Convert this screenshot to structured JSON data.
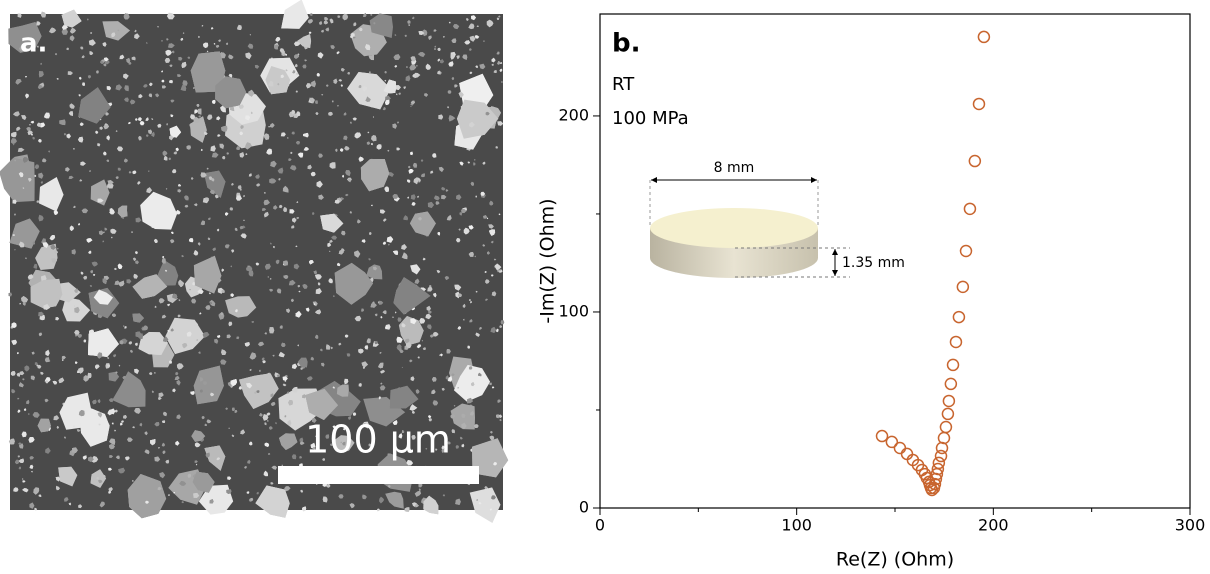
{
  "panel_a": {
    "label": "a.",
    "scale_bar": "100 µm"
  },
  "chart_data": {
    "type": "scatter",
    "panel_label": "b.",
    "annotations": [
      "RT",
      "100 MPa"
    ],
    "inset": {
      "diameter": "8 mm",
      "thickness": "1.35 mm"
    },
    "x_label": "Re(Z) (Ohm)",
    "y_label": "-Im(Z) (Ohm)",
    "xlim": [
      0,
      300
    ],
    "ylim": [
      0,
      252
    ],
    "xticks": [
      0,
      100,
      200,
      300
    ],
    "yticks": [
      0,
      100,
      200
    ],
    "xminorticks": [
      50,
      150,
      250
    ],
    "yminorticks": [
      50,
      150
    ],
    "color": "#c8652f",
    "x": [
      143.4,
      148.4,
      152.5,
      156.1,
      159.1,
      161.7,
      163.7,
      165.2,
      166.2,
      167.3,
      167.8,
      168.3,
      168.8,
      169.8,
      170.3,
      170.8,
      171.3,
      171.8,
      172.3,
      173.4,
      173.9,
      174.9,
      175.9,
      176.9,
      177.4,
      178.4,
      179.5,
      181.0,
      182.5,
      184.5,
      186.1,
      188.1,
      190.6,
      192.7,
      195.2
    ],
    "values": [
      36.7,
      33.7,
      30.6,
      27.6,
      24.5,
      21.9,
      19.4,
      17.3,
      15.3,
      13.3,
      11.7,
      10.2,
      9.2,
      10.2,
      12.2,
      14.8,
      17.3,
      19.9,
      23.0,
      26.5,
      30.6,
      35.7,
      41.3,
      48.0,
      54.6,
      63.3,
      73.0,
      84.7,
      97.4,
      112.8,
      131.1,
      152.6,
      177.0,
      206.1,
      240.3
    ]
  }
}
